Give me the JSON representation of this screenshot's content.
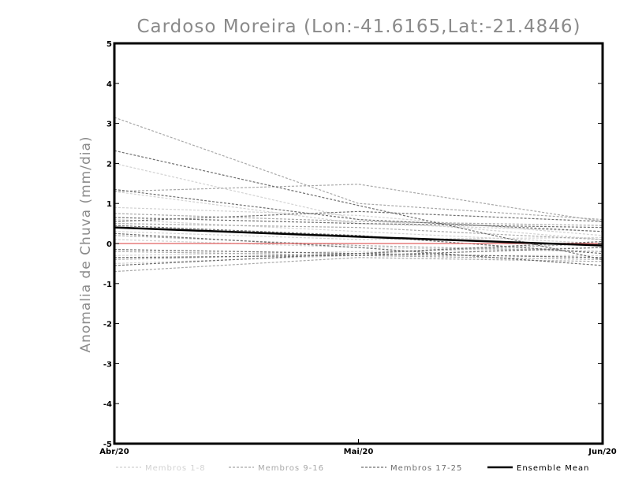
{
  "chart_data": {
    "type": "line",
    "title": "Cardoso Moreira (Lon:-41.6165,Lat:-21.4846)",
    "xlabel": "",
    "ylabel": "Anomalia de Chuva (mm/dia)",
    "categories": [
      "Abr/20",
      "Mai/20",
      "Jun/20"
    ],
    "ylim": [
      -5,
      5
    ],
    "yticks": [
      "5",
      "4",
      "3",
      "2",
      "1",
      "0",
      "-1",
      "-2",
      "-3",
      "-4",
      "-5"
    ],
    "grid": false,
    "zero_line_color": "#e06060",
    "groups": [
      {
        "name": "Membros 1-8",
        "color": "#d2d2d2",
        "series": [
          {
            "values": [
              2.0,
              0.6,
              0.1
            ]
          },
          {
            "values": [
              0.9,
              0.7,
              0.2
            ]
          },
          {
            "values": [
              0.6,
              0.3,
              0.0
            ]
          },
          {
            "values": [
              0.3,
              0.1,
              0.15
            ]
          },
          {
            "values": [
              0.1,
              -0.1,
              -0.2
            ]
          },
          {
            "values": [
              -0.3,
              -0.2,
              -0.1
            ]
          },
          {
            "values": [
              -0.5,
              -0.3,
              -0.3
            ]
          },
          {
            "values": [
              1.3,
              0.5,
              0.3
            ]
          }
        ]
      },
      {
        "name": "Membros 9-16",
        "color": "#a8a8a8",
        "series": [
          {
            "values": [
              3.15,
              1.0,
              0.6
            ]
          },
          {
            "values": [
              1.3,
              1.48,
              0.55
            ]
          },
          {
            "values": [
              0.75,
              0.55,
              0.45
            ]
          },
          {
            "values": [
              0.5,
              0.4,
              0.1
            ]
          },
          {
            "values": [
              0.2,
              -0.05,
              -0.2
            ]
          },
          {
            "values": [
              -0.2,
              -0.3,
              -0.4
            ]
          },
          {
            "values": [
              -0.4,
              -0.25,
              0.0
            ]
          },
          {
            "values": [
              -0.7,
              -0.35,
              -0.45
            ]
          }
        ]
      },
      {
        "name": "Membros 17-25",
        "color": "#6e6e6e",
        "series": [
          {
            "values": [
              2.32,
              0.95,
              -0.4
            ]
          },
          {
            "values": [
              0.55,
              0.8,
              0.55
            ]
          },
          {
            "values": [
              0.65,
              0.5,
              0.4
            ]
          },
          {
            "values": [
              0.25,
              -0.1,
              -0.55
            ]
          },
          {
            "values": [
              -0.15,
              -0.25,
              -0.35
            ]
          },
          {
            "values": [
              -0.35,
              -0.3,
              -0.1
            ]
          },
          {
            "values": [
              -0.55,
              -0.25,
              0.05
            ]
          },
          {
            "values": [
              0.45,
              0.2,
              -0.25
            ]
          },
          {
            "values": [
              1.35,
              0.6,
              0.3
            ]
          }
        ]
      }
    ],
    "ensemble_mean": {
      "name": "Ensemble Mean",
      "color": "#000000",
      "values": [
        0.4,
        0.17,
        -0.05
      ]
    }
  }
}
